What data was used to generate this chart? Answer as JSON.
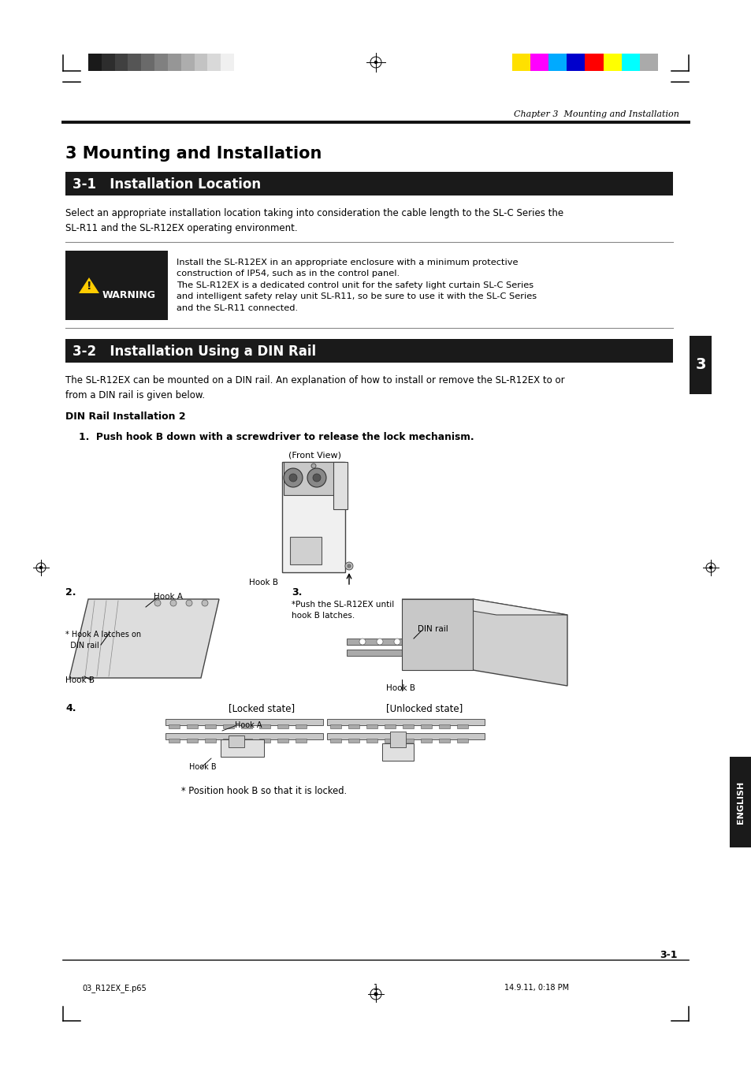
{
  "page_bg": "#ffffff",
  "header_chapter_text": "Chapter 3  Mounting and Installation",
  "main_title": "3 Mounting and Installation",
  "section1_title": "3-1   Installation Location",
  "section1_body1": "Select an appropriate installation location taking into consideration the cable length to the SL-C Series the\nSL-R11 and the SL-R12EX operating environment.",
  "warning_text1": "Install the SL-R12EX in an appropriate enclosure with a minimum protective\nconstruction of IP54, such as in the control panel.\nThe SL-R12EX is a dedicated control unit for the safety light curtain SL-C Series\nand intelligent safety relay unit SL-R11, so be sure to use it with the SL-C Series\nand the SL-R11 connected.",
  "section2_title": "3-2   Installation Using a DIN Rail",
  "section2_body1": "The SL-R12EX can be mounted on a DIN rail. An explanation of how to install or remove the SL-R12EX to or\nfrom a DIN rail is given below.",
  "din_subtitle": "DIN Rail Installation 2",
  "step1_text": "1.  Push hook B down with a screwdriver to release the lock mechanism.",
  "front_view_label": "(Front View)",
  "hook_b_label1": "Hook B",
  "step2_label": "2.",
  "hook_a_label": "Hook A",
  "hook_a_note": "* Hook A latches on\n  DIN rail",
  "hook_b_label2": "Hook B",
  "step3_label": "3.",
  "push_note": "*Push the SL-R12EX until\nhook B latches.",
  "din_rail_label": "DIN rail",
  "hook_b_label3": "Hook B",
  "step4_label": "4.",
  "locked_label": "[Locked state]",
  "unlocked_label": "[Unlocked state]",
  "hook_a_label2": "Hook A",
  "hook_b_label4": "Hook B",
  "position_note": "* Position hook B so that it is locked.",
  "page_number": "3-1",
  "footer_left": "03_R12EX_E.p65",
  "footer_center_num": "1",
  "footer_right": "14.9.11, 0:18 PM",
  "section_tab_text": "3",
  "section_header_bg": "#1a1a1a",
  "section_header_text_color": "#ffffff",
  "body_text_color": "#000000",
  "english_tab_text": "ENGLISH",
  "gray_colors": [
    "#1a1a1a",
    "#2d2d2d",
    "#404040",
    "#555555",
    "#6a6a6a",
    "#808080",
    "#969696",
    "#adadad",
    "#c3c3c3",
    "#d9d9d9",
    "#f0f0f0"
  ],
  "color_bar_colors": [
    "#ffe000",
    "#ff00ff",
    "#00aaff",
    "#0000cc",
    "#ff0000",
    "#ffff00",
    "#00ffff",
    "#aaaaaa"
  ]
}
